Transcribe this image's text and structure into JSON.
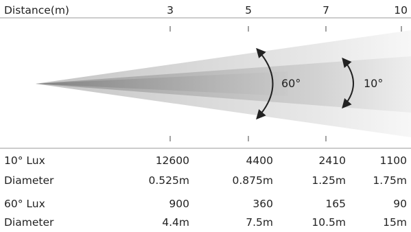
{
  "header": {
    "distance_label": "Distance(m)",
    "distances": [
      "3",
      "5",
      "7",
      "10"
    ]
  },
  "beam": {
    "wide_angle": "60°",
    "narrow_angle": "10°"
  },
  "rows": [
    {
      "label": "10° Lux",
      "values": [
        "12600",
        "4400",
        "2410",
        "1100"
      ]
    },
    {
      "label": "Diameter",
      "values": [
        "0.525m",
        "0.875m",
        "1.25m",
        "1.75m"
      ]
    },
    {
      "label": "60° Lux",
      "values": [
        "900",
        "360",
        "165",
        "90"
      ]
    },
    {
      "label": "Diameter",
      "values": [
        "4.4m",
        "7.5m",
        "10.5m",
        "15m"
      ]
    }
  ],
  "colors": {
    "outer_beam": "#e6e6e6",
    "inner_beam": "#b8b8b8",
    "core_beam": "#8c8c8c",
    "arrow": "#222222"
  }
}
